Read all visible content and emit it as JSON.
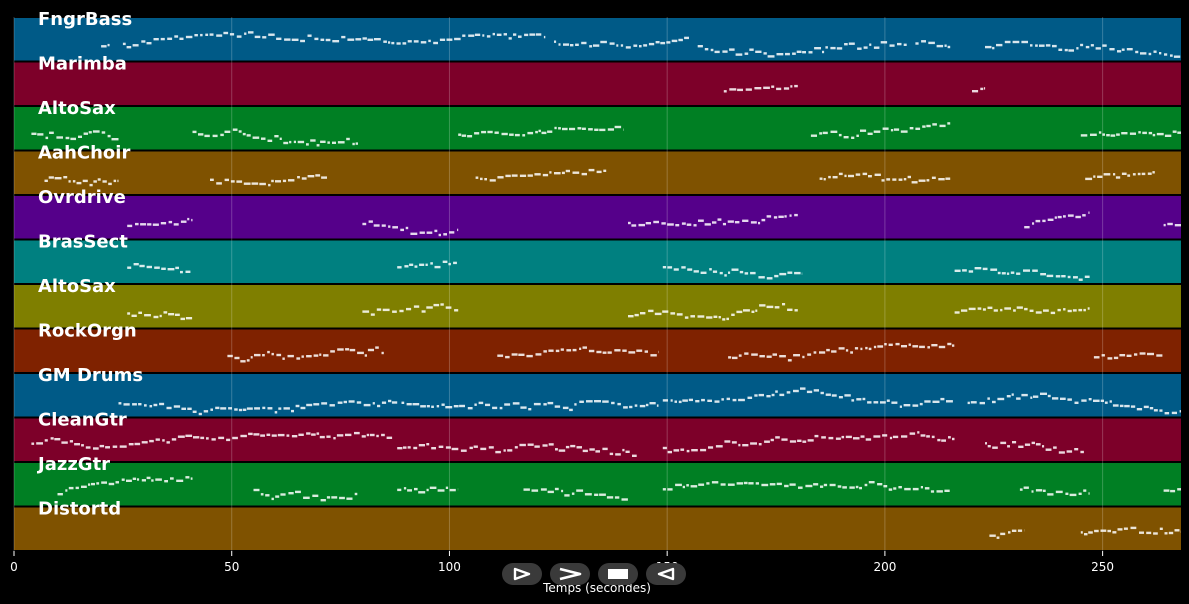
{
  "chart_data": {
    "type": "piano-roll",
    "xlabel": "Temps (secondes)",
    "xlim": [
      0,
      268
    ],
    "xticks": [
      0,
      50,
      100,
      150,
      200,
      250
    ],
    "xtick_labels": [
      "0",
      "50",
      "100",
      "150",
      "200",
      "250"
    ],
    "grid": true,
    "tracks": [
      {
        "name": "FngrBass",
        "color": "#005a87",
        "segments": [
          [
            20,
            22
          ],
          [
            25,
            122
          ],
          [
            124,
            155
          ],
          [
            157,
            205
          ],
          [
            207,
            215
          ],
          [
            223,
            268
          ]
        ]
      },
      {
        "name": "Marimba",
        "color": "#7d0029",
        "segments": [
          [
            163,
            180
          ],
          [
            220,
            223
          ]
        ]
      },
      {
        "name": "AltoSax",
        "color": "#007f23",
        "segments": [
          [
            4,
            24
          ],
          [
            41,
            79
          ],
          [
            102,
            140
          ],
          [
            183,
            215
          ],
          [
            245,
            268
          ]
        ]
      },
      {
        "name": "AahChoir",
        "color": "#7f5200",
        "segments": [
          [
            7,
            24
          ],
          [
            45,
            72
          ],
          [
            106,
            136
          ],
          [
            185,
            215
          ],
          [
            246,
            262
          ]
        ]
      },
      {
        "name": "Ovrdrive",
        "color": "#55008a",
        "segments": [
          [
            26,
            41
          ],
          [
            80,
            102
          ],
          [
            141,
            180
          ],
          [
            232,
            247
          ],
          [
            264,
            268
          ]
        ]
      },
      {
        "name": "BrasSect",
        "color": "#008080",
        "segments": [
          [
            26,
            41
          ],
          [
            88,
            102
          ],
          [
            149,
            181
          ],
          [
            216,
            247
          ]
        ]
      },
      {
        "name": "AltoSax",
        "color": "#7f7f00",
        "segments": [
          [
            26,
            41
          ],
          [
            80,
            102
          ],
          [
            141,
            180
          ],
          [
            216,
            247
          ]
        ]
      },
      {
        "name": "RockOrgn",
        "color": "#7f2200",
        "segments": [
          [
            49,
            85
          ],
          [
            111,
            148
          ],
          [
            164,
            216
          ],
          [
            248,
            264
          ]
        ]
      },
      {
        "name": "GM Drums",
        "color": "#005a87",
        "segments": [
          [
            24,
            88
          ],
          [
            89,
            148
          ],
          [
            149,
            216
          ],
          [
            219,
            268
          ]
        ]
      },
      {
        "name": "CleanGtr",
        "color": "#7d0029",
        "segments": [
          [
            4,
            87
          ],
          [
            88,
            143
          ],
          [
            149,
            216
          ],
          [
            223,
            246
          ]
        ]
      },
      {
        "name": "JazzGtr",
        "color": "#007f23",
        "segments": [
          [
            10,
            41
          ],
          [
            55,
            79
          ],
          [
            88,
            102
          ],
          [
            117,
            141
          ],
          [
            149,
            215
          ],
          [
            231,
            247
          ],
          [
            264,
            268
          ]
        ]
      },
      {
        "name": "Distortd",
        "color": "#7f5200",
        "segments": [
          [
            224,
            232
          ],
          [
            245,
            268
          ]
        ]
      }
    ]
  },
  "controls": [
    {
      "name": "play",
      "icon": "play-icon"
    },
    {
      "name": "forward",
      "icon": "forward-icon"
    },
    {
      "name": "stop",
      "icon": "stop-icon"
    },
    {
      "name": "rewind",
      "icon": "rewind-icon"
    }
  ]
}
